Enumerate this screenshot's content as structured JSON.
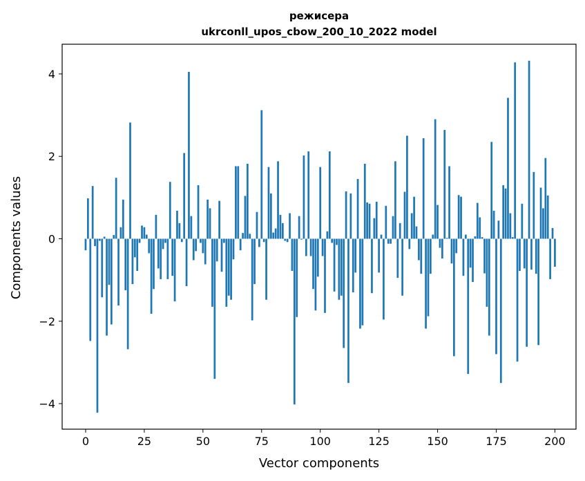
{
  "chart_data": {
    "type": "bar",
    "title_line1": "режисера",
    "title_line2": "ukrconll_upos_cbow_200_10_2022 model",
    "xlabel": "Vector components",
    "ylabel": "Components values",
    "xlim": [
      -10,
      209
    ],
    "ylim": [
      -4.62,
      4.72
    ],
    "xticks": [
      0,
      25,
      50,
      75,
      100,
      125,
      150,
      175,
      200
    ],
    "xtick_labels": [
      "0",
      "25",
      "50",
      "75",
      "100",
      "125",
      "150",
      "175",
      "200"
    ],
    "yticks": [
      -4,
      -2,
      0,
      2,
      4
    ],
    "ytick_labels": [
      "−4",
      "−2",
      "0",
      "2",
      "4"
    ],
    "bar_color": "#1f77b4",
    "grid": false,
    "values": [
      -0.28,
      0.98,
      -2.48,
      1.28,
      -0.18,
      -4.22,
      -0.05,
      -1.42,
      0.05,
      -2.35,
      -1.12,
      -2.08,
      0.09,
      1.48,
      -1.62,
      0.28,
      0.95,
      -1.25,
      -2.68,
      2.82,
      -1.1,
      -0.45,
      -0.78,
      -0.1,
      0.32,
      0.28,
      0.1,
      -0.35,
      -1.82,
      -1.22,
      0.58,
      -0.72,
      -0.98,
      -0.25,
      -0.1,
      -0.98,
      1.38,
      -0.9,
      -1.52,
      0.68,
      0.38,
      -0.08,
      2.08,
      -1.15,
      4.05,
      0.55,
      -0.52,
      -0.3,
      1.3,
      -0.1,
      -0.35,
      -0.62,
      0.95,
      0.74,
      -1.65,
      -3.4,
      -0.55,
      0.92,
      -0.8,
      -0.1,
      -1.65,
      -1.38,
      -1.48,
      -0.5,
      1.76,
      1.76,
      -0.28,
      0.14,
      1.04,
      1.82,
      0.12,
      -1.98,
      -1.1,
      0.65,
      -0.2,
      3.12,
      -0.08,
      -1.48,
      1.74,
      1.1,
      0.15,
      0.25,
      1.88,
      0.58,
      0.38,
      -0.05,
      -0.08,
      0.62,
      -0.78,
      -4.02,
      -1.9,
      0.55,
      -0.02,
      2.02,
      -0.42,
      2.12,
      -0.42,
      -1.22,
      -1.74,
      -0.92,
      1.74,
      -0.42,
      -1.8,
      0.18,
      2.12,
      -0.1,
      -1.28,
      -0.15,
      -1.48,
      -1.38,
      -2.65,
      1.15,
      -3.5,
      1.1,
      -1.3,
      -0.82,
      1.45,
      -2.18,
      -2.1,
      1.82,
      0.88,
      0.85,
      -1.32,
      0.5,
      0.9,
      -0.82,
      0.1,
      -1.96,
      0.8,
      -0.12,
      -0.12,
      0.55,
      1.88,
      -0.95,
      0.38,
      -1.38,
      1.14,
      2.5,
      -0.25,
      0.62,
      1.02,
      0.3,
      -0.52,
      -0.85,
      2.44,
      -2.18,
      -1.88,
      -0.85,
      0.1,
      2.9,
      0.82,
      -0.22,
      -0.48,
      2.64,
      0.02,
      1.76,
      -0.6,
      -2.85,
      -0.35,
      1.06,
      1.02,
      -0.9,
      0.1,
      -3.28,
      -0.7,
      -1.05,
      0.06,
      0.87,
      0.52,
      0.04,
      -0.84,
      -1.65,
      -2.35,
      2.35,
      0.68,
      -2.8,
      0.44,
      -3.5,
      1.3,
      1.22,
      3.42,
      0.62,
      0.04,
      4.28,
      -2.98,
      -0.78,
      0.85,
      -0.72,
      -2.62,
      4.32,
      -0.75,
      1.62,
      -0.85,
      -2.58,
      1.24,
      0.74,
      1.96,
      1.05,
      -0.98,
      0.26,
      -0.68
    ]
  }
}
